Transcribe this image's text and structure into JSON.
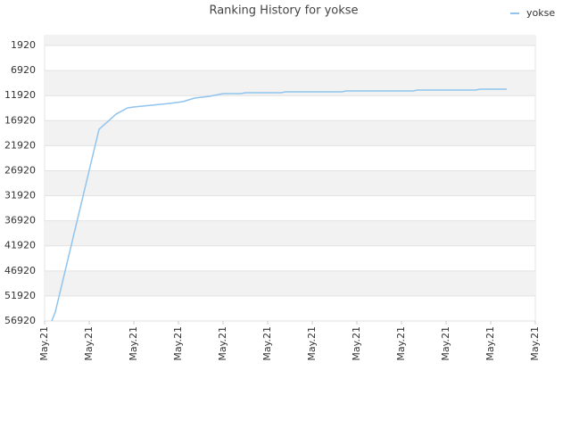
{
  "chart_data": {
    "type": "line",
    "title": "Ranking History for yokse",
    "x": [
      0.16,
      0.24,
      1.22,
      1.4,
      1.6,
      1.86,
      2.0,
      2.4,
      2.8,
      3.1,
      3.36,
      3.7,
      4.0,
      4.4,
      4.5,
      5.3,
      5.4,
      6.66,
      6.76,
      8.26,
      8.36,
      9.66,
      9.76,
      10.36
    ],
    "series": [
      {
        "name": "yokse",
        "color": "#90c4ee",
        "values": [
          56920,
          55100,
          18650,
          17230,
          15630,
          14380,
          14200,
          13850,
          13490,
          13130,
          12420,
          12070,
          11530,
          11530,
          11350,
          11350,
          11180,
          11180,
          11000,
          11000,
          10820,
          10820,
          10640,
          10640
        ]
      }
    ],
    "xlim": [
      0,
      11
    ],
    "xticks": [
      {
        "value": 0,
        "label": "May.21"
      },
      {
        "value": 1,
        "label": "May.21"
      },
      {
        "value": 2,
        "label": "May.21"
      },
      {
        "value": 3,
        "label": "May.21"
      },
      {
        "value": 4,
        "label": "May.21"
      },
      {
        "value": 5,
        "label": "May.21"
      },
      {
        "value": 6,
        "label": "May.21"
      },
      {
        "value": 7,
        "label": "May.21"
      },
      {
        "value": 8,
        "label": "May.21"
      },
      {
        "value": 9,
        "label": "May.21"
      },
      {
        "value": 10,
        "label": "May.21"
      },
      {
        "value": 11,
        "label": "May.21"
      }
    ],
    "ylim": [
      56920,
      -40
    ],
    "yticks": [
      1920,
      6920,
      11920,
      16920,
      21920,
      26920,
      31920,
      36920,
      41920,
      46920,
      51920,
      56920
    ],
    "grid": true,
    "legend": "top-right"
  }
}
